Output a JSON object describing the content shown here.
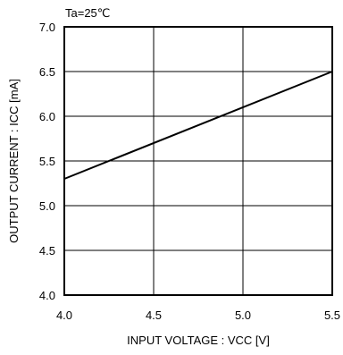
{
  "chart_data": {
    "type": "line",
    "title": "",
    "annotation": "Ta=25℃",
    "xlabel": "INPUT VOLTAGE : VCC [V]",
    "ylabel": "OUTPUT CURRENT : ICC [mA]",
    "xlim": [
      4.0,
      5.5
    ],
    "ylim": [
      4.0,
      7.0
    ],
    "x_ticks": [
      4.0,
      4.5,
      5.0,
      5.5
    ],
    "y_ticks": [
      4.0,
      4.5,
      5.0,
      5.5,
      6.0,
      6.5,
      7.0
    ],
    "x_tick_labels": [
      "4.0",
      "4.5",
      "5.0",
      "5.5"
    ],
    "y_tick_labels": [
      "4.0",
      "4.5",
      "5.0",
      "5.5",
      "6.0",
      "6.5",
      "7.0"
    ],
    "grid": true,
    "series": [
      {
        "x": [
          4.0,
          5.5
        ],
        "y": [
          5.3,
          6.5
        ]
      }
    ],
    "colors": {
      "line": "#000000",
      "grid": "#000000",
      "background": "#ffffff"
    }
  }
}
